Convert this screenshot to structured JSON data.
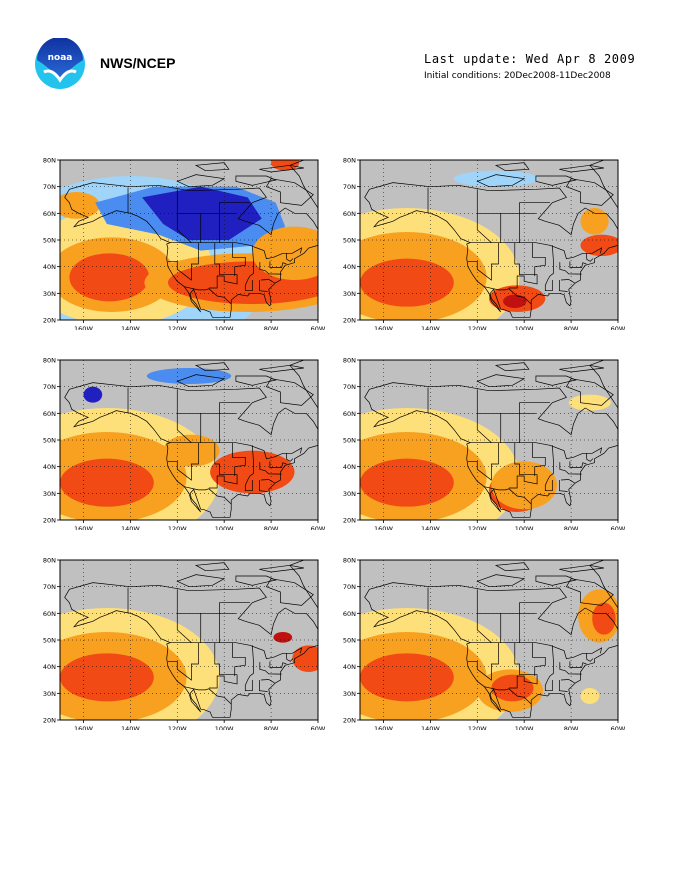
{
  "header": {
    "logo_text": "noaa",
    "agency": "NWS/NCEP",
    "last_update": "Last update: Wed Apr 8 2009",
    "initial_conditions": "Initial conditions: 20Dec2008-11Dec2008"
  },
  "colors": {
    "land_gray": "#c0c0c0",
    "deep_blue": "#2020c0",
    "medium_blue": "#4a8cf0",
    "light_blue": "#a0d4f8",
    "yellow": "#fde07a",
    "orange": "#f8a020",
    "red_orange": "#f24a14",
    "dark_red": "#c01010"
  },
  "map_axes": {
    "x_ticks": [
      "160W",
      "140W",
      "120W",
      "100W",
      "80W",
      "60W"
    ],
    "y_ticks": [
      "20N",
      "30N",
      "40N",
      "50N",
      "60N",
      "70N",
      "80N"
    ],
    "lon_range": [
      -170,
      -60
    ],
    "lat_range": [
      20,
      80
    ]
  },
  "panels": [
    {
      "id": 1,
      "pattern": "cold-canada-warm-southeast"
    },
    {
      "id": 2,
      "pattern": "warm-pacific-texas"
    },
    {
      "id": 3,
      "pattern": "warm-pacific-central-us"
    },
    {
      "id": 4,
      "pattern": "warm-pacific-southern-plains"
    },
    {
      "id": 5,
      "pattern": "warm-pacific-weak"
    },
    {
      "id": 6,
      "pattern": "warm-pacific-southwest-newengland"
    }
  ]
}
